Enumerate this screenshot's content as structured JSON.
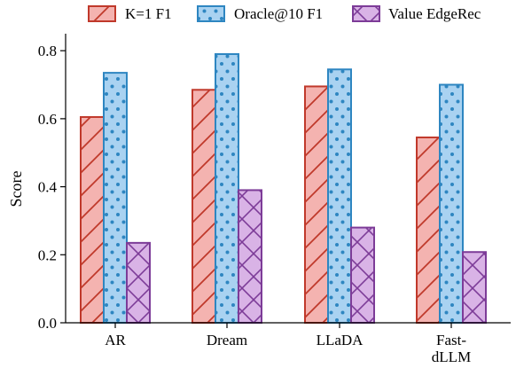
{
  "chart_data": {
    "type": "bar",
    "title": "",
    "xlabel": "",
    "ylabel": "Score",
    "ylim": [
      0,
      0.85
    ],
    "yticks": [
      "0.0",
      "0.2",
      "0.4",
      "0.6",
      "0.8"
    ],
    "categories": [
      "AR",
      "Dream",
      "LLaDA",
      "Fast-dLLM"
    ],
    "category_lines": [
      [
        "AR"
      ],
      [
        "Dream"
      ],
      [
        "LLaDA"
      ],
      [
        "Fast-",
        "dLLM"
      ]
    ],
    "legend_position": "top",
    "grid": false,
    "series": [
      {
        "name": "K=1 F1",
        "values": [
          0.605,
          0.685,
          0.695,
          0.545
        ],
        "fill": "#f4b3b0",
        "stroke": "#c0392b",
        "pattern": "diagonal-hatch"
      },
      {
        "name": "Oracle@10 F1",
        "values": [
          0.735,
          0.79,
          0.745,
          0.7
        ],
        "fill": "#a9d2f1",
        "stroke": "#2e86c1",
        "pattern": "dots"
      },
      {
        "name": "Value EdgeRec",
        "values": [
          0.235,
          0.39,
          0.28,
          0.208
        ],
        "fill": "#d9b3e6",
        "stroke": "#7d3c98",
        "pattern": "cross-hatch"
      }
    ]
  }
}
